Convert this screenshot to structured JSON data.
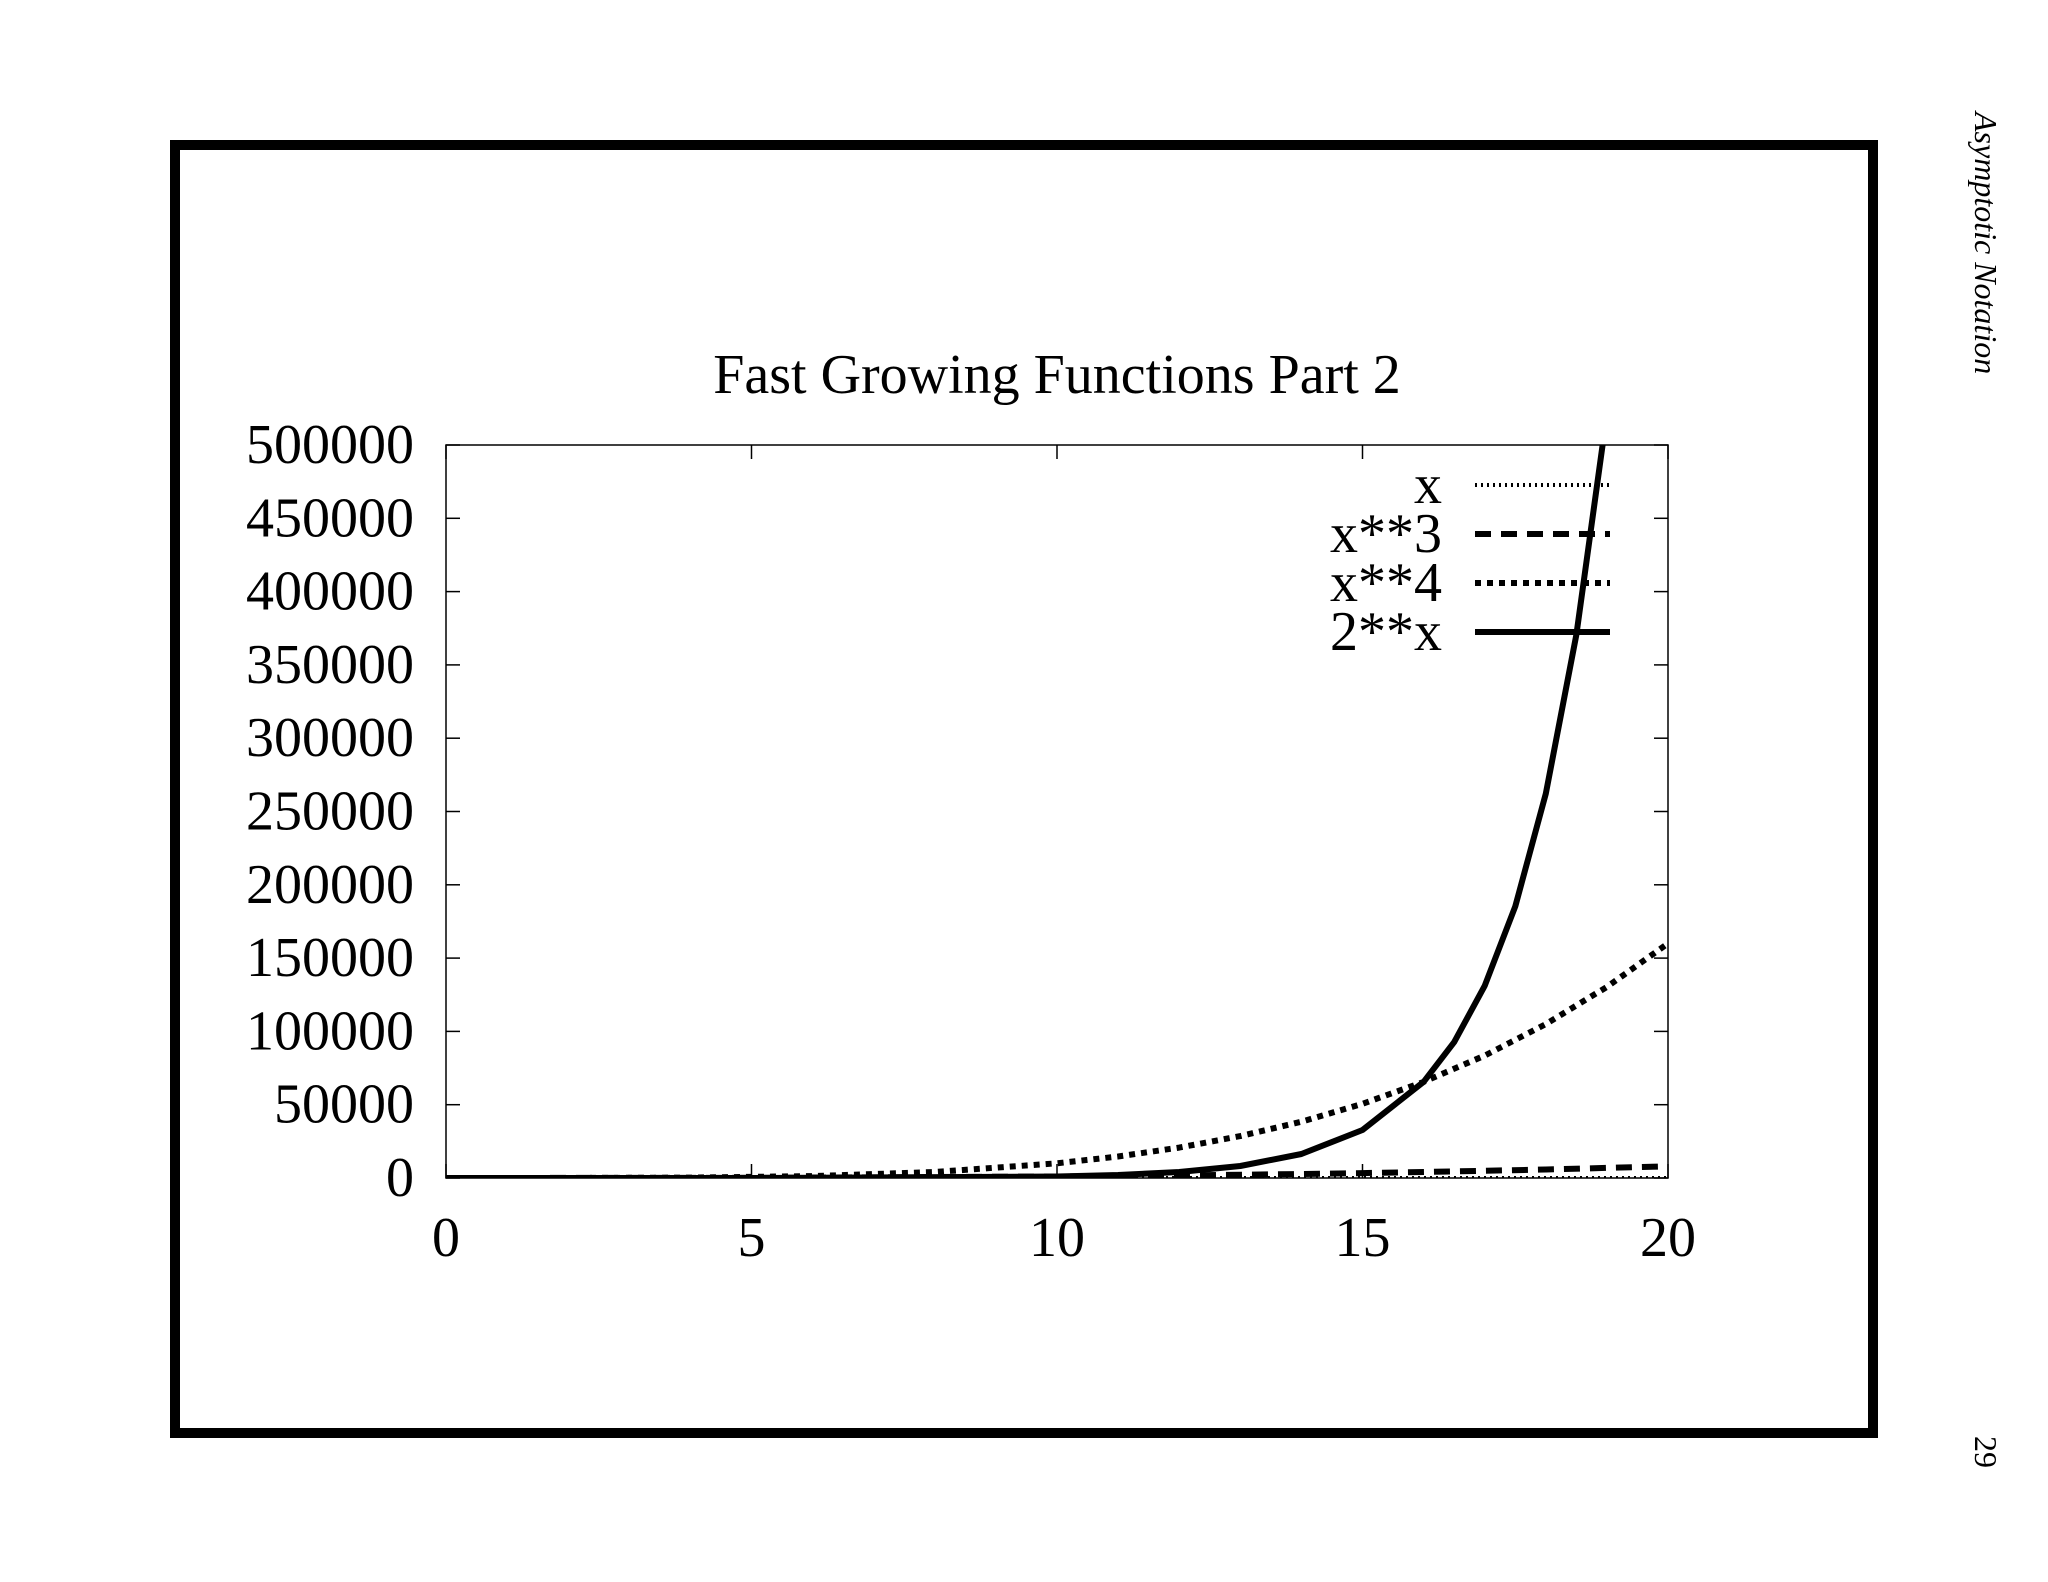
{
  "page": {
    "side_header": "Asymptotic Notation",
    "page_number": "29"
  },
  "chart_data": {
    "type": "line",
    "title": "Fast Growing Functions Part 2",
    "xlabel": "",
    "ylabel": "",
    "xlim": [
      0,
      20
    ],
    "ylim": [
      0,
      500000
    ],
    "x_ticks": [
      "0",
      "5",
      "10",
      "15",
      "20"
    ],
    "y_ticks": [
      "0",
      "50000",
      "100000",
      "150000",
      "200000",
      "250000",
      "300000",
      "350000",
      "400000",
      "450000",
      "500000"
    ],
    "grid": false,
    "legend_position": "top-right",
    "series": [
      {
        "name": "x",
        "style": "fine-dotted",
        "x": [
          0,
          5,
          10,
          15,
          20
        ],
        "y": [
          0,
          5,
          10,
          15,
          20
        ]
      },
      {
        "name": "x**3",
        "style": "dashed",
        "x": [
          0,
          5,
          10,
          12,
          14,
          15,
          16,
          17,
          18,
          19,
          20
        ],
        "y": [
          0,
          125,
          1000,
          1728,
          2744,
          3375,
          4096,
          4913,
          5832,
          6859,
          8000
        ]
      },
      {
        "name": "x**4",
        "style": "dotted",
        "x": [
          0,
          2,
          4,
          6,
          8,
          10,
          11,
          12,
          13,
          14,
          15,
          16,
          17,
          18,
          19,
          20
        ],
        "y": [
          0,
          16,
          256,
          1296,
          4096,
          10000,
          14641,
          20736,
          28561,
          38416,
          50625,
          65536,
          83521,
          104976,
          130321,
          160000
        ]
      },
      {
        "name": "2**x",
        "style": "solid",
        "x": [
          0,
          5,
          10,
          11,
          12,
          13,
          14,
          15,
          16,
          16.5,
          17,
          17.5,
          18,
          18.5,
          18.93
        ],
        "y": [
          1,
          32,
          1024,
          2048,
          4096,
          8192,
          16384,
          32768,
          65536,
          92682,
          131072,
          185364,
          262144,
          370728,
          500000
        ]
      }
    ]
  }
}
